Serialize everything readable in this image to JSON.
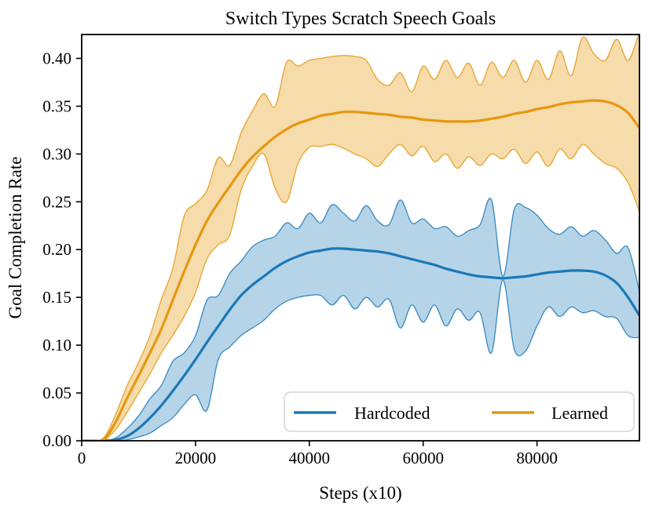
{
  "chart_data": {
    "type": "line",
    "title": "Switch Types Scratch Speech Goals",
    "xlabel": "Steps (x10)",
    "ylabel": "Goal Completion Rate",
    "xlim": [
      0,
      98000
    ],
    "ylim": [
      0,
      0.425
    ],
    "grid": false,
    "legend_position": "lower right (horizontal)",
    "xticks": {
      "values": [
        0,
        20000,
        40000,
        60000,
        80000
      ],
      "labels": [
        "0",
        "20000",
        "40000",
        "60000",
        "80000"
      ]
    },
    "yticks": {
      "values": [
        0.0,
        0.05,
        0.1,
        0.15,
        0.2,
        0.25,
        0.3,
        0.35,
        0.4
      ],
      "labels": [
        "0.00",
        "0.05",
        "0.10",
        "0.15",
        "0.20",
        "0.25",
        "0.30",
        "0.35",
        "0.40"
      ]
    },
    "x": [
      0,
      2000,
      4000,
      6000,
      8000,
      10000,
      12000,
      14000,
      16000,
      18000,
      20000,
      22000,
      24000,
      26000,
      28000,
      30000,
      32000,
      34000,
      36000,
      38000,
      40000,
      42000,
      44000,
      46000,
      48000,
      50000,
      52000,
      54000,
      56000,
      58000,
      60000,
      62000,
      64000,
      66000,
      68000,
      70000,
      72000,
      74000,
      76000,
      78000,
      80000,
      82000,
      84000,
      86000,
      88000,
      90000,
      92000,
      94000,
      96000,
      98000
    ],
    "series": [
      {
        "name": "Hardcoded",
        "color": "#1b78b6",
        "fill_alpha": 0.32,
        "mean": [
          0,
          0,
          0,
          0.001,
          0.005,
          0.013,
          0.024,
          0.037,
          0.052,
          0.068,
          0.085,
          0.103,
          0.12,
          0.137,
          0.152,
          0.163,
          0.172,
          0.181,
          0.188,
          0.193,
          0.197,
          0.199,
          0.201,
          0.201,
          0.2,
          0.199,
          0.198,
          0.196,
          0.193,
          0.19,
          0.187,
          0.184,
          0.18,
          0.177,
          0.174,
          0.172,
          0.171,
          0.17,
          0.171,
          0.172,
          0.174,
          0.176,
          0.177,
          0.178,
          0.178,
          0.177,
          0.173,
          0.165,
          0.15,
          0.131
        ],
        "upper": [
          0,
          0,
          0,
          0.003,
          0.013,
          0.026,
          0.044,
          0.058,
          0.083,
          0.092,
          0.11,
          0.147,
          0.152,
          0.175,
          0.188,
          0.203,
          0.21,
          0.214,
          0.228,
          0.222,
          0.238,
          0.228,
          0.247,
          0.238,
          0.23,
          0.246,
          0.23,
          0.226,
          0.252,
          0.228,
          0.232,
          0.222,
          0.224,
          0.214,
          0.22,
          0.226,
          0.252,
          0.172,
          0.242,
          0.244,
          0.236,
          0.222,
          0.216,
          0.224,
          0.214,
          0.22,
          0.21,
          0.196,
          0.202,
          0.156
        ],
        "lower": [
          0,
          0,
          0,
          0,
          0.001,
          0.004,
          0.008,
          0.016,
          0.024,
          0.038,
          0.048,
          0.032,
          0.085,
          0.098,
          0.11,
          0.118,
          0.126,
          0.138,
          0.146,
          0.15,
          0.152,
          0.152,
          0.142,
          0.152,
          0.138,
          0.15,
          0.14,
          0.148,
          0.118,
          0.142,
          0.124,
          0.142,
          0.12,
          0.138,
          0.126,
          0.134,
          0.092,
          0.168,
          0.096,
          0.094,
          0.12,
          0.14,
          0.13,
          0.14,
          0.134,
          0.136,
          0.13,
          0.128,
          0.11,
          0.108
        ]
      },
      {
        "name": "Learned",
        "color": "#e5980f",
        "fill_alpha": 0.35,
        "mean": [
          0,
          0,
          0.002,
          0.02,
          0.045,
          0.068,
          0.092,
          0.117,
          0.147,
          0.177,
          0.205,
          0.23,
          0.249,
          0.266,
          0.283,
          0.297,
          0.308,
          0.318,
          0.326,
          0.332,
          0.336,
          0.34,
          0.342,
          0.344,
          0.344,
          0.343,
          0.342,
          0.341,
          0.339,
          0.338,
          0.336,
          0.335,
          0.334,
          0.334,
          0.334,
          0.335,
          0.337,
          0.339,
          0.342,
          0.344,
          0.347,
          0.349,
          0.352,
          0.354,
          0.355,
          0.356,
          0.355,
          0.351,
          0.343,
          0.327
        ],
        "upper": [
          0,
          0,
          0.004,
          0.028,
          0.058,
          0.082,
          0.11,
          0.148,
          0.18,
          0.235,
          0.248,
          0.262,
          0.296,
          0.288,
          0.322,
          0.345,
          0.363,
          0.35,
          0.396,
          0.392,
          0.398,
          0.4,
          0.402,
          0.403,
          0.402,
          0.398,
          0.378,
          0.372,
          0.385,
          0.365,
          0.392,
          0.378,
          0.398,
          0.38,
          0.395,
          0.372,
          0.396,
          0.38,
          0.398,
          0.375,
          0.398,
          0.378,
          0.408,
          0.382,
          0.422,
          0.405,
          0.398,
          0.42,
          0.398,
          0.428
        ],
        "lower": [
          0,
          0,
          0.001,
          0.012,
          0.03,
          0.05,
          0.07,
          0.092,
          0.11,
          0.13,
          0.155,
          0.19,
          0.205,
          0.215,
          0.262,
          0.287,
          0.3,
          0.264,
          0.25,
          0.29,
          0.307,
          0.308,
          0.31,
          0.306,
          0.3,
          0.295,
          0.287,
          0.3,
          0.31,
          0.298,
          0.308,
          0.292,
          0.3,
          0.285,
          0.297,
          0.288,
          0.3,
          0.295,
          0.305,
          0.29,
          0.302,
          0.287,
          0.305,
          0.295,
          0.31,
          0.3,
          0.29,
          0.285,
          0.27,
          0.24
        ]
      }
    ]
  }
}
